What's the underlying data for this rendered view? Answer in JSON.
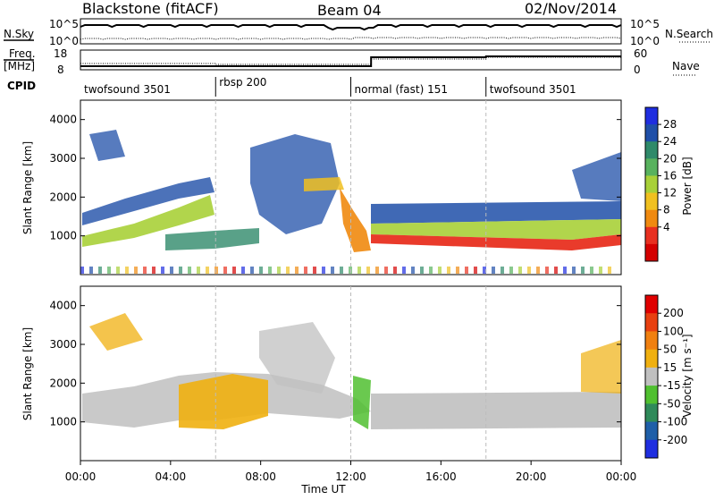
{
  "header": {
    "station": "Blackstone (fitACF)",
    "beam": "Beam 04",
    "date": "02/Nov/2014"
  },
  "top_panels": {
    "nsky_label": "N.Sky",
    "nsearch_label": "N.Search",
    "noise_ticks": [
      "10^5",
      "10^0"
    ],
    "freq_label_line1": "Freq.",
    "freq_label_line2": "[MHz]",
    "freq_ticks": [
      "18",
      "8"
    ],
    "nave_label": "Nave",
    "nave_ticks": [
      "60",
      "0"
    ],
    "cpid_label": "CPID"
  },
  "cpid_segments": [
    {
      "label": "twofsound 3501",
      "start_h": 0
    },
    {
      "label": "rbsp 200",
      "start_h": 6
    },
    {
      "label": "normal (fast) 151",
      "start_h": 12
    },
    {
      "label": "twofsound 3501",
      "start_h": 18
    }
  ],
  "chart_data": [
    {
      "type": "heatmap",
      "name": "power",
      "ylabel": "Slant Range [km]",
      "yticks": [
        "1000",
        "2000",
        "3000",
        "4000"
      ],
      "ylim": [
        0,
        4500
      ],
      "xlim": [
        0,
        24
      ],
      "colorbar_label": "Power [dB]",
      "colorbar_ticks": [
        "4",
        "8",
        "12",
        "16",
        "20",
        "24",
        "28"
      ],
      "colors": [
        "#1f2ee0",
        "#1f4fa8",
        "#2f8a6a",
        "#58b25e",
        "#a8d038",
        "#f0c020",
        "#f08a10",
        "#e83020",
        "#d40000"
      ]
    },
    {
      "type": "heatmap",
      "name": "velocity",
      "ylabel": "Slant Range [km]",
      "yticks": [
        "1000",
        "2000",
        "3000",
        "4000"
      ],
      "ylim": [
        0,
        4500
      ],
      "xlim": [
        0,
        24
      ],
      "colorbar_label": "Velocity [m s⁻¹]",
      "colorbar_ticks": [
        "200",
        "100",
        "50",
        "15",
        "-15",
        "-50",
        "-100",
        "-200"
      ],
      "colors": [
        "#1f2ee0",
        "#1f5fa8",
        "#2f8a5a",
        "#50c030",
        "#c0c0c0",
        "#f0b010",
        "#f08010",
        "#e84010",
        "#e00000"
      ]
    }
  ],
  "xaxis": {
    "label": "Time UT",
    "ticks": [
      "00:00",
      "04:00",
      "08:00",
      "12:00",
      "16:00",
      "20:00",
      "00:00"
    ]
  }
}
